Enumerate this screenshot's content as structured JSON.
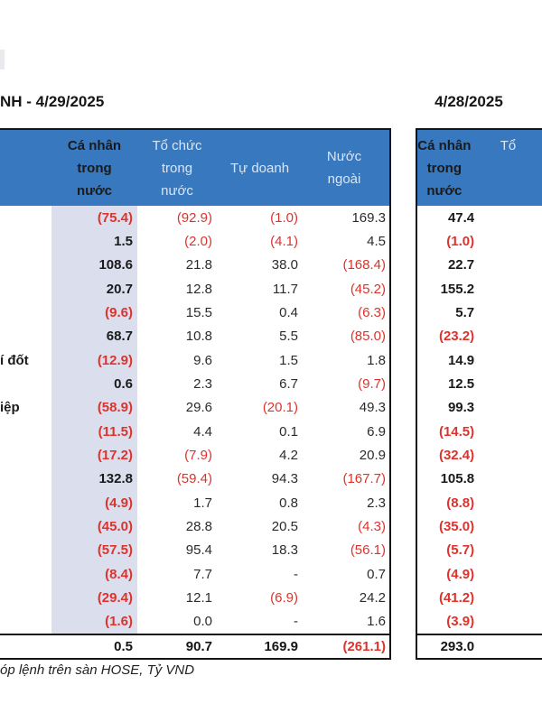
{
  "colors": {
    "header_blue": "#3878be",
    "header_text": "#d9e6f5",
    "highlight_lavender": "#dbdeed",
    "negative_red": "#de332d",
    "border_black": "#141414"
  },
  "footer_note": "óp lệnh trên sàn HOSE, Tỷ VND",
  "table_left": {
    "title": "NH - 4/29/2025",
    "col_headers": [
      "Cá nhân\ntrong\nnước",
      "Tổ chức\ntrong\nnước",
      "Tự doanh",
      "Nước\nngoài"
    ],
    "row_labels": [
      "",
      "",
      "",
      "",
      "",
      "",
      "í đốt",
      "",
      "iệp",
      "",
      "",
      "",
      "",
      "",
      "",
      "",
      "",
      ""
    ],
    "rows": [
      [
        "(75.4)",
        "(92.9)",
        "(1.0)",
        "169.3"
      ],
      [
        "1.5",
        "(2.0)",
        "(4.1)",
        "4.5"
      ],
      [
        "108.6",
        "21.8",
        "38.0",
        "(168.4)"
      ],
      [
        "20.7",
        "12.8",
        "11.7",
        "(45.2)"
      ],
      [
        "(9.6)",
        "15.5",
        "0.4",
        "(6.3)"
      ],
      [
        "68.7",
        "10.8",
        "5.5",
        "(85.0)"
      ],
      [
        "(12.9)",
        "9.6",
        "1.5",
        "1.8"
      ],
      [
        "0.6",
        "2.3",
        "6.7",
        "(9.7)"
      ],
      [
        "(58.9)",
        "29.6",
        "(20.1)",
        "49.3"
      ],
      [
        "(11.5)",
        "4.4",
        "0.1",
        "6.9"
      ],
      [
        "(17.2)",
        "(7.9)",
        "4.2",
        "20.9"
      ],
      [
        "132.8",
        "(59.4)",
        "94.3",
        "(167.7)"
      ],
      [
        "(4.9)",
        "1.7",
        "0.8",
        "2.3"
      ],
      [
        "(45.0)",
        "28.8",
        "20.5",
        "(4.3)"
      ],
      [
        "(57.5)",
        "95.4",
        "18.3",
        "(56.1)"
      ],
      [
        "(8.4)",
        "7.7",
        "-",
        "0.7"
      ],
      [
        "(29.4)",
        "12.1",
        "(6.9)",
        "24.2"
      ],
      [
        "(1.6)",
        "0.0",
        "-",
        "1.6"
      ]
    ],
    "totals": [
      "0.5",
      "90.7",
      "169.9",
      "(261.1)"
    ]
  },
  "table_right": {
    "title": "4/28/2025",
    "col_headers": [
      "Cá nhân\ntrong nước",
      "Tổ"
    ],
    "rows": [
      "47.4",
      "(1.0)",
      "22.7",
      "155.2",
      "5.7",
      "(23.2)",
      "14.9",
      "12.5",
      "99.3",
      "(14.5)",
      "(32.4)",
      "105.8",
      "(8.8)",
      "(35.0)",
      "(5.7)",
      "(4.9)",
      "(41.2)",
      "(3.9)"
    ],
    "total": "293.0"
  }
}
